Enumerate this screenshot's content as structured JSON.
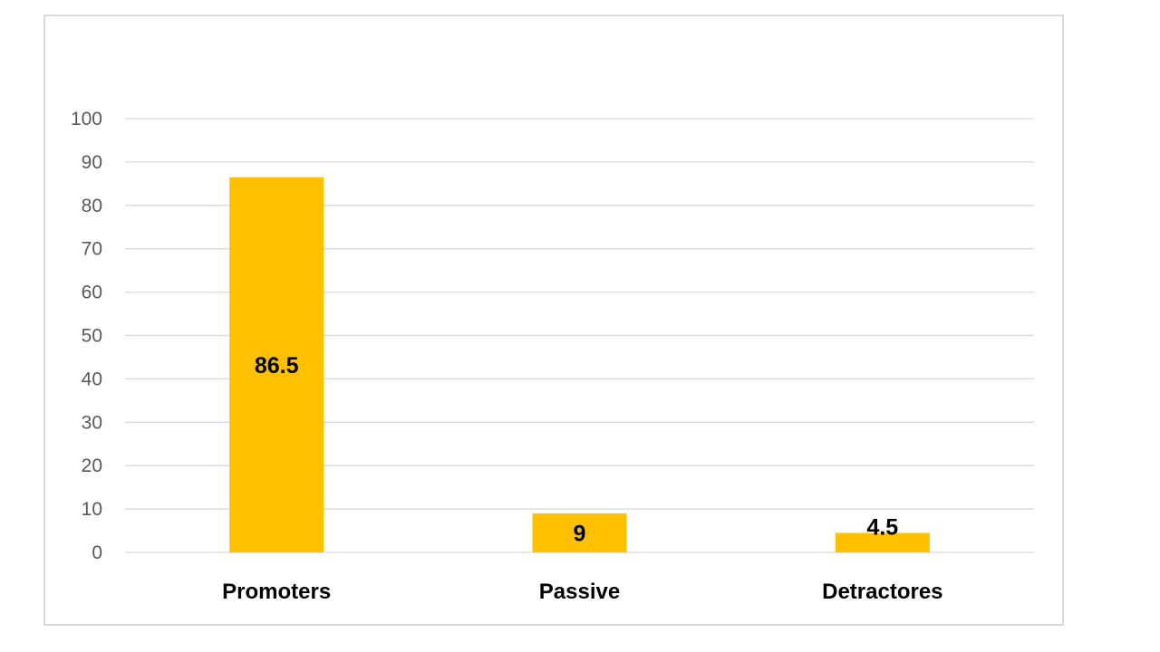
{
  "chart_data": {
    "type": "bar",
    "categories": [
      "Promoters",
      "Passive",
      "Detractores"
    ],
    "values": [
      86.5,
      9,
      4.5
    ],
    "data_labels": [
      "86.5",
      "9",
      "4.5"
    ],
    "ylim": [
      0,
      100
    ],
    "yticks": [
      0,
      10,
      20,
      30,
      40,
      50,
      60,
      70,
      80,
      90,
      100
    ],
    "title": "",
    "xlabel": "",
    "ylabel": "",
    "grid": true,
    "legend": "none",
    "colors": {
      "bar": "#FFC000",
      "grid": "#D9D9D9",
      "frame": "#D9D9D9",
      "tick_text": "#595959",
      "label_text": "#000000"
    }
  }
}
